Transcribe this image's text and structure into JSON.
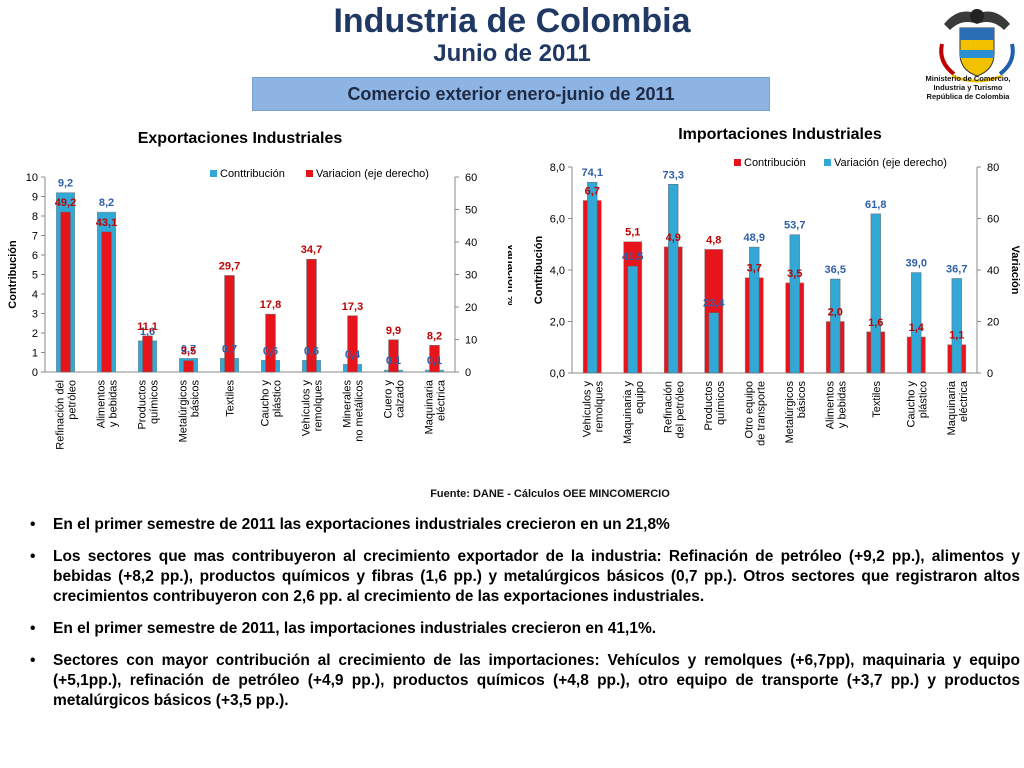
{
  "header": {
    "title": "Industria de Colombia",
    "subtitle": "Junio de 2011",
    "banner": "Comercio exterior enero-junio de 2011",
    "ministry": [
      "Ministerio de Comercio,",
      "Industria y Turismo",
      "República de Colombia"
    ]
  },
  "colors": {
    "title": "#1f3864",
    "banner_bg": "#8db4e2",
    "red_bar": "#e8141c",
    "cyan_bar": "#31a8d6",
    "red_label": "#c00000",
    "blue_label": "#2f5fa8"
  },
  "chart_data": [
    {
      "type": "bar",
      "title": "Exportaciones Industriales",
      "categories": [
        [
          "Refinación del",
          "petróleo"
        ],
        [
          "Alimentos",
          "y  bebidas"
        ],
        [
          "Productos",
          "químicos"
        ],
        [
          "Metalúrgicos",
          "básicos"
        ],
        [
          "Textiles"
        ],
        [
          "Caucho y",
          "plástico"
        ],
        [
          "Vehículos y",
          "remolques"
        ],
        [
          "Minerales",
          "no metálicos"
        ],
        [
          "Cuero y",
          "calzado"
        ],
        [
          "Maquinaria",
          "eléctrica"
        ]
      ],
      "series": [
        {
          "name": "Conttribución",
          "axis": "left",
          "color": "#31a8d6",
          "values": [
            9.2,
            8.2,
            1.6,
            0.7,
            0.7,
            0.6,
            0.6,
            0.4,
            0.1,
            0.1
          ],
          "labels": [
            "9,2",
            "8,2",
            "1,6",
            "0,7",
            "0,7",
            "0,6",
            "0,6",
            "0,4",
            "0,1",
            "0,1"
          ]
        },
        {
          "name": "Variacion (eje derecho)",
          "axis": "right",
          "color": "#e8141c",
          "values": [
            49.2,
            43.1,
            11.1,
            3.5,
            29.7,
            17.8,
            34.7,
            17.3,
            9.9,
            8.2
          ],
          "labels": [
            "49,2",
            "43,1",
            "11,1",
            "3,5",
            "29,7",
            "17,8",
            "34,7",
            "17,3",
            "9,9",
            "8,2"
          ]
        }
      ],
      "ylabel": "Contribución",
      "y2label": "Variación %",
      "ylim": [
        0,
        10
      ],
      "y2lim": [
        0,
        60
      ],
      "yticks": [
        "0",
        "1",
        "2",
        "3",
        "4",
        "5",
        "6",
        "7",
        "8",
        "9",
        "10"
      ],
      "y2ticks": [
        "0",
        "10",
        "20",
        "30",
        "40",
        "50",
        "60"
      ],
      "grid": false,
      "legend_position": "top"
    },
    {
      "type": "bar",
      "title": "Importaciones Industriales",
      "categories": [
        [
          "Vehículos y",
          "remolques"
        ],
        [
          "Maquinaria y",
          "equipo"
        ],
        [
          "Refinación",
          "del petróleo"
        ],
        [
          "Productos",
          "químicos"
        ],
        [
          "Otro equipo",
          "de transporte"
        ],
        [
          "Metalúrgicos",
          "básicos"
        ],
        [
          "Alimentos",
          "y  bebidas"
        ],
        [
          "Textiles"
        ],
        [
          "Caucho y",
          "plástico"
        ],
        [
          "Maquinaria",
          "eléctrica"
        ]
      ],
      "series": [
        {
          "name": "Contribución",
          "axis": "left",
          "color": "#e8141c",
          "values": [
            6.7,
            5.1,
            4.9,
            4.8,
            3.7,
            3.5,
            2.0,
            1.6,
            1.4,
            1.1
          ],
          "labels": [
            "6,7",
            "5,1",
            "4,9",
            "4,8",
            "3,7",
            "3,5",
            "2,0",
            "1,6",
            "1,4",
            "1,1"
          ]
        },
        {
          "name": "Variación (eje derecho)",
          "axis": "right",
          "color": "#31a8d6",
          "values": [
            74.1,
            41.5,
            73.3,
            23.4,
            48.9,
            53.7,
            36.5,
            61.8,
            39.0,
            36.7
          ],
          "labels": [
            "74,1",
            "41,5",
            "73,3",
            "23,4",
            "48,9",
            "53,7",
            "36,5",
            "61,8",
            "39,0",
            "36,7"
          ]
        }
      ],
      "ylabel": "Contribución",
      "y2label": "Variación",
      "ylim": [
        0,
        8
      ],
      "y2lim": [
        0,
        80
      ],
      "yticks": [
        "0,0",
        "2,0",
        "4,0",
        "6,0",
        "8,0"
      ],
      "y2ticks": [
        "0",
        "20",
        "40",
        "60",
        "80"
      ],
      "grid": false,
      "legend_position": "top"
    }
  ],
  "source": "Fuente: DANE - Cálculos OEE MINCOMERCIO",
  "bullets": [
    "En el primer semestre de 2011 las exportaciones industriales crecieron en un 21,8%",
    "Los sectores que mas contribuyeron al crecimiento exportador de la industria:  Refinación de petróleo (+9,2 pp.), alimentos y bebidas (+8,2 pp.), productos químicos y fibras (1,6 pp.) y metalúrgicos básicos (0,7 pp.).  Otros sectores que registraron altos crecimientos contribuyeron con 2,6 pp. al crecimiento de las exportaciones industriales.",
    "En el primer semestre de 2011, las importaciones industriales crecieron en 41,1%.",
    "Sectores con mayor contribución al crecimiento de las importaciones: Vehículos y remolques (+6,7pp), maquinaria y equipo (+5,1pp.), refinación de petróleo (+4,9 pp.), productos químicos (+4,8 pp.), otro equipo de transporte (+3,7 pp.) y productos metalúrgicos básicos (+3,5 pp.)."
  ]
}
